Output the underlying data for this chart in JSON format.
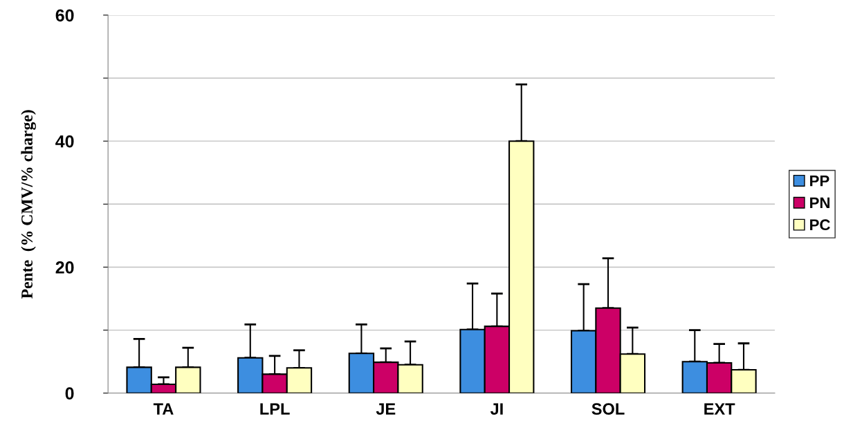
{
  "chart_data": {
    "type": "bar",
    "ylabel": "Pente  (% CMV/% charge)",
    "categories": [
      "TA",
      "LPL",
      "JE",
      "JI",
      "SOL",
      "EXT"
    ],
    "series": [
      {
        "name": "PP",
        "color": "#3d8ee0",
        "values": [
          4.1,
          5.6,
          6.3,
          10.1,
          9.9,
          5.0
        ],
        "errors": [
          4.5,
          5.3,
          4.6,
          7.3,
          7.4,
          5.0
        ]
      },
      {
        "name": "PN",
        "color": "#cc0066",
        "values": [
          1.4,
          3.0,
          4.9,
          10.6,
          13.5,
          4.8
        ],
        "errors": [
          1.1,
          2.9,
          2.2,
          5.2,
          7.9,
          3.0
        ]
      },
      {
        "name": "PC",
        "color": "#ffffc0",
        "values": [
          4.1,
          4.0,
          4.5,
          40.0,
          6.2,
          3.7
        ],
        "errors": [
          3.1,
          2.8,
          3.7,
          9.0,
          4.2,
          4.2
        ]
      }
    ],
    "ylim": [
      0,
      60
    ],
    "yticks": [
      0,
      {
        "value": 10,
        "label": null
      },
      20,
      {
        "value": 30,
        "label": null
      },
      40,
      {
        "value": 50,
        "label": null
      },
      60
    ],
    "grid": "y",
    "legend": "right"
  }
}
